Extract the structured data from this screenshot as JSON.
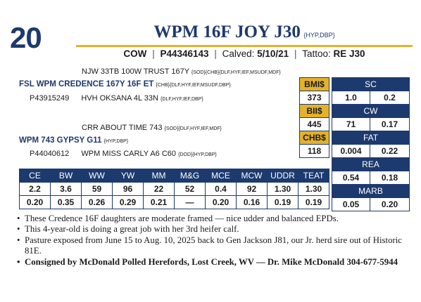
{
  "lot": "20",
  "animal": {
    "name": "WPM 16F JOY J30",
    "codes": "{HYP,DBP}",
    "sex": "COW",
    "registration": "P44346143",
    "calved_label": "Calved:",
    "calved": "5/10/21",
    "tattoo_label": "Tattoo:",
    "tattoo": "RE J30"
  },
  "pedigree": {
    "sire_sire": {
      "name": "NJW 33TB 100W TRUST 167Y",
      "codes": "{SOD}{CHB}{DLF,HYF,IEF,MSUDF,MDF}"
    },
    "sire": {
      "name": "FSL WPM CREDENCE 167Y 16F ET",
      "codes": "{CHB}{DLF,HYF,IEF,MSUDF,DBP}"
    },
    "sire_reg": "P43915249",
    "sire_dam": {
      "name": "HVH OKSANA 4L 33N",
      "codes": "{DLF,HYF,IEF,DBP}"
    },
    "dam_sire": {
      "name": "CRR ABOUT TIME 743",
      "codes": "{SOD}{DLF,HYF,IEF,MDF}"
    },
    "dam": {
      "name": "WPM 743 GYPSY G11",
      "codes": "{HYP,DBP}"
    },
    "dam_reg": "P44040612",
    "dam_dam": {
      "name": "WPM MISS CARLY A6 C60",
      "codes": "{DOD}{HYP,DBP}"
    }
  },
  "indexes": [
    {
      "label": "BMI$",
      "value": "373"
    },
    {
      "label": "BII$",
      "value": "445"
    },
    {
      "label": "CHB$",
      "value": "118"
    }
  ],
  "carcass": [
    {
      "label": "SC",
      "epd": "1.0",
      "acc": "0.2"
    },
    {
      "label": "CW",
      "epd": "71",
      "acc": "0.17"
    },
    {
      "label": "FAT",
      "epd": "0.004",
      "acc": "0.22"
    },
    {
      "label": "REA",
      "epd": "0.54",
      "acc": "0.18"
    },
    {
      "label": "MARB",
      "epd": "0.05",
      "acc": "0.20"
    }
  ],
  "epd_table": {
    "headers": [
      "CE",
      "BW",
      "WW",
      "YW",
      "MM",
      "M&G",
      "MCE",
      "MCW",
      "UDDR",
      "TEAT"
    ],
    "epds": [
      "2.2",
      "3.6",
      "59",
      "96",
      "22",
      "52",
      "0.4",
      "92",
      "1.30",
      "1.30"
    ],
    "acc": [
      "0.20",
      "0.35",
      "0.26",
      "0.29",
      "0.21",
      "—",
      "0.20",
      "0.16",
      "0.19",
      "0.19"
    ]
  },
  "notes": [
    "These Credence 16F daughters are moderate framed — nice udder and balanced EPDs.",
    "This 4-year-old is doing a great job with her 3rd heifer calf.",
    "Pasture exposed from June 15 to Aug. 10, 2025 back to Gen Jackson J81, our Jr. herd sire out of Historic 81E.",
    "Consigned by McDonald Polled Herefords, Lost Creek, WV — Dr. Mike McDonald 304-677-5944"
  ],
  "colors": {
    "navy": "#1d3a6e",
    "gold": "#e3b22a"
  }
}
